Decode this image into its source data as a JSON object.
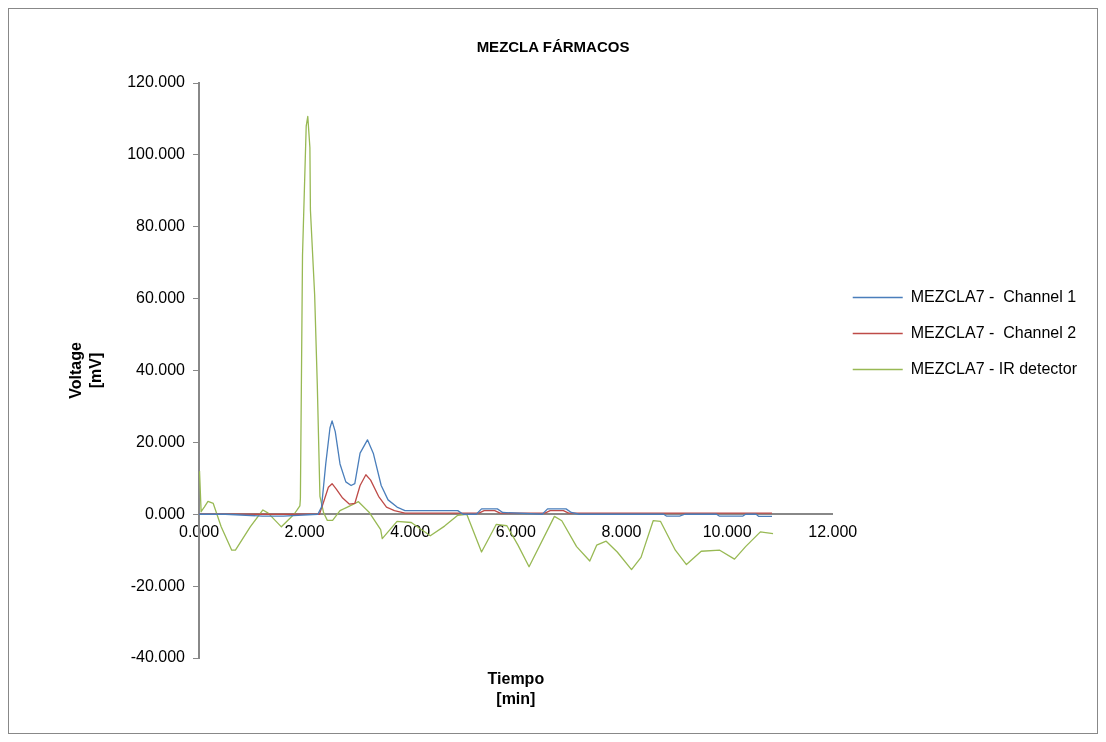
{
  "chart_data": {
    "type": "line",
    "title": "MEZCLA FÁRMACOS",
    "xlabel": "Tiempo\n[min]",
    "ylabel": "Voltage\n[mV]",
    "xlim": [
      0,
      12
    ],
    "xticks": [
      {
        "value": 0,
        "label": "0.000"
      },
      {
        "value": 2,
        "label": "2.000"
      },
      {
        "value": 4,
        "label": "4.000"
      },
      {
        "value": 6,
        "label": "6.000"
      },
      {
        "value": 8,
        "label": "8.000"
      },
      {
        "value": 10,
        "label": "10.000"
      },
      {
        "value": 12,
        "label": "12.000"
      }
    ],
    "ylim": [
      -40,
      120
    ],
    "yticks": [
      {
        "value": -40,
        "label": "-40.000"
      },
      {
        "value": -20,
        "label": "-20.000"
      },
      {
        "value": 0,
        "label": "0.000"
      },
      {
        "value": 20,
        "label": "20.000"
      },
      {
        "value": 40,
        "label": "40.000"
      },
      {
        "value": 60,
        "label": "60.000"
      },
      {
        "value": 80,
        "label": "80.000"
      },
      {
        "value": 100,
        "label": "100.000"
      },
      {
        "value": 120,
        "label": "120.000"
      }
    ],
    "grid": false,
    "legend": "right",
    "marker": "none",
    "line_style": "solid",
    "series": [
      {
        "name": "MEZCLA7 -  Channel 1",
        "color": "#4a7ebb",
        "x": [
          0,
          0.5,
          1.2,
          1.6,
          2.25,
          2.32,
          2.4,
          2.48,
          2.52,
          2.58,
          2.67,
          2.78,
          2.88,
          2.95,
          3.05,
          3.19,
          3.3,
          3.45,
          3.58,
          3.75,
          3.9,
          4.9,
          5.0,
          5.25,
          5.35,
          5.65,
          5.75,
          6.5,
          6.6,
          6.95,
          7.05,
          7.2,
          8.8,
          8.85,
          9.1,
          9.2,
          9.8,
          9.85,
          10.3,
          10.35,
          10.55,
          10.6,
          10.85
        ],
        "values": [
          0,
          0,
          -0.5,
          -0.5,
          0,
          2,
          14,
          24,
          26,
          23,
          14,
          9,
          8,
          8.5,
          17,
          20.7,
          17,
          8,
          4,
          2,
          1,
          1,
          0,
          0,
          1.5,
          1.5,
          0.5,
          0,
          1.5,
          1.5,
          0.5,
          0,
          0,
          -0.5,
          -0.5,
          0,
          0,
          -0.5,
          -0.5,
          0,
          0,
          -0.6,
          -0.6
        ]
      },
      {
        "name": "MEZCLA7 -  Channel 2",
        "color": "#be4b48",
        "x": [
          0,
          2.28,
          2.35,
          2.45,
          2.52,
          2.6,
          2.72,
          2.85,
          2.95,
          3.05,
          3.16,
          3.25,
          3.4,
          3.55,
          3.7,
          3.9,
          5.3,
          5.4,
          5.6,
          5.7,
          6.55,
          6.65,
          6.9,
          7.0,
          10.85
        ],
        "values": [
          0,
          0,
          3,
          7.5,
          8.5,
          7,
          4.5,
          2.8,
          3,
          8,
          11,
          9.5,
          5,
          2,
          1,
          0.3,
          0.3,
          1,
          1,
          0.3,
          0.3,
          1,
          1,
          0.3,
          0.3
        ]
      },
      {
        "name": "MEZCLA7 - IR detector",
        "color": "#98b954",
        "x": [
          0.01,
          0.04,
          0.1,
          0.17,
          0.27,
          0.42,
          0.62,
          0.69,
          0.97,
          1.21,
          1.31,
          1.56,
          1.8,
          1.91,
          1.92,
          1.96,
          2.03,
          2.06,
          2.1,
          2.11,
          2.19,
          2.24,
          2.29,
          2.36,
          2.43,
          2.53,
          2.67,
          2.81,
          3.02,
          3.23,
          3.44,
          3.47,
          3.75,
          4.02,
          4.38,
          4.65,
          4.9,
          5.07,
          5.35,
          5.63,
          5.83,
          6.04,
          6.25,
          6.73,
          6.87,
          7.15,
          7.4,
          7.53,
          7.71,
          7.92,
          8.19,
          8.37,
          8.6,
          8.74,
          9.02,
          9.23,
          9.51,
          9.86,
          10.14,
          10.35,
          10.63,
          10.87
        ],
        "values": [
          12,
          0.7,
          2,
          3.6,
          3,
          -3.5,
          -10,
          -10,
          -3.5,
          1.2,
          0.3,
          -3.5,
          0,
          2.3,
          4.4,
          72,
          108,
          110.7,
          102,
          84.6,
          61,
          36,
          5,
          0.4,
          -1.7,
          -1.7,
          1,
          2,
          3.5,
          0.4,
          -4.3,
          -6.8,
          -2,
          -2.3,
          -6,
          -3.3,
          -0.3,
          0,
          -10.5,
          -2.8,
          -3.2,
          -8.6,
          -14.6,
          -0.6,
          -1.8,
          -9,
          -13,
          -8.6,
          -7.5,
          -10.5,
          -15.4,
          -12,
          -1.8,
          -2,
          -10,
          -14,
          -10.3,
          -10,
          -12.5,
          -9,
          -4.9,
          -5.4
        ]
      }
    ]
  }
}
